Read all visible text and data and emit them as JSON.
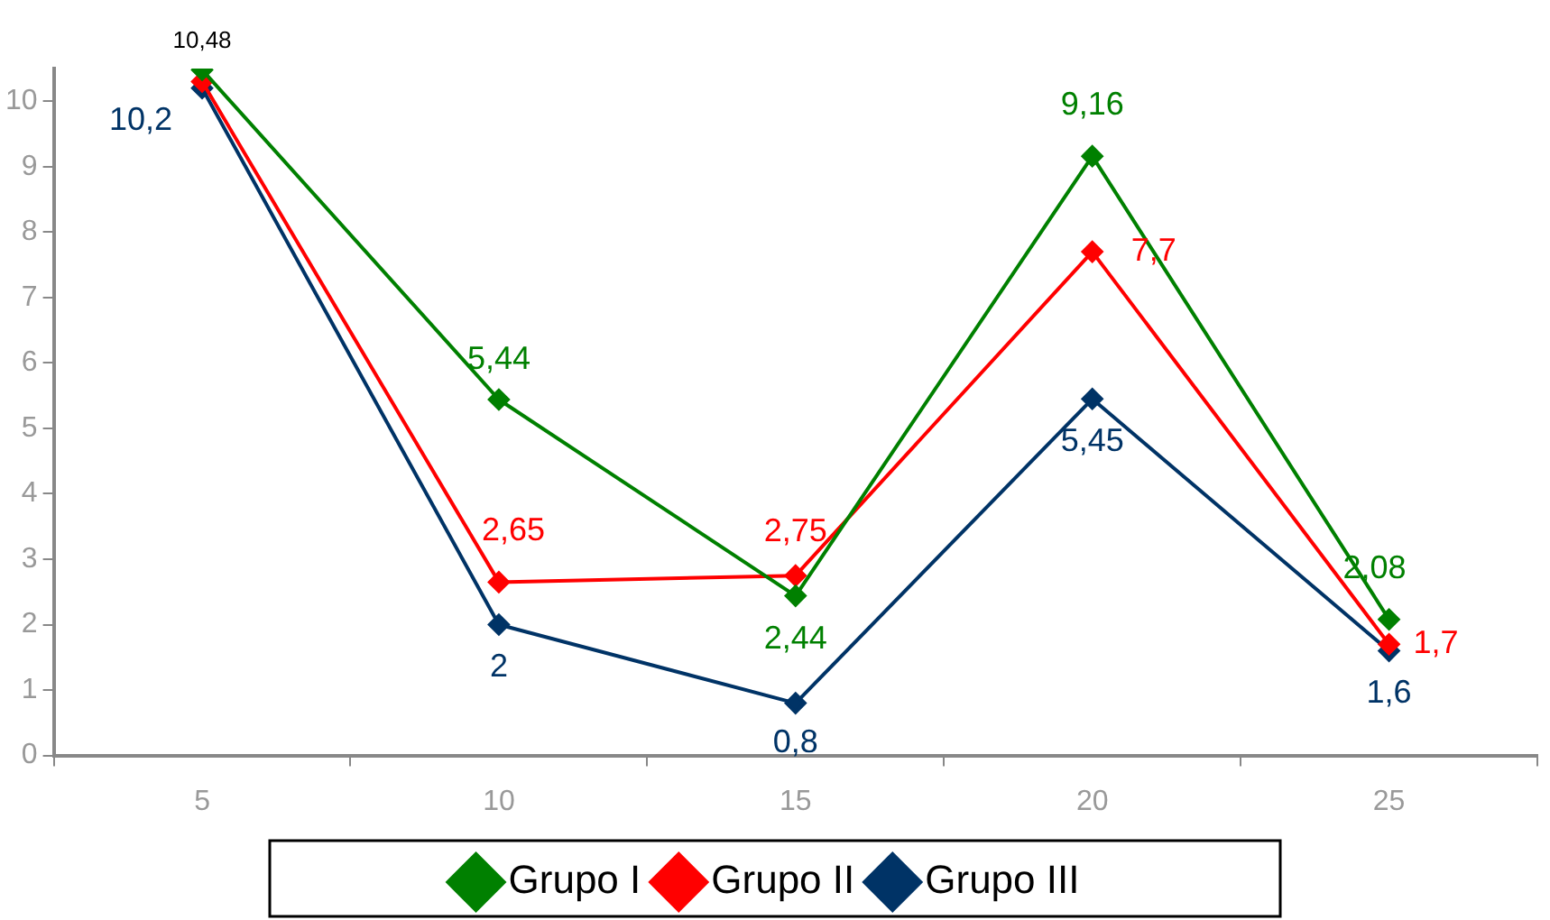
{
  "chart_data": {
    "type": "line",
    "categories": [
      "5",
      "10",
      "15",
      "20",
      "25"
    ],
    "series": [
      {
        "name": "Grupo I",
        "color": "#008000",
        "values": [
          10.48,
          5.44,
          2.44,
          9.16,
          2.08
        ],
        "value_labels": [
          null,
          "5,44",
          "2,44",
          "9,16",
          "2,08"
        ]
      },
      {
        "name": "Grupo II",
        "color": "#ff0000",
        "values": [
          10.3,
          2.65,
          2.75,
          7.7,
          1.7
        ],
        "value_labels": [
          null,
          "2,65",
          "2,75",
          "7,7",
          "1,7"
        ]
      },
      {
        "name": "Grupo III",
        "color": "#003366",
        "values": [
          10.2,
          2,
          0.8,
          5.45,
          1.6
        ],
        "value_labels": [
          "10,2",
          "2",
          "0,8",
          "5,45",
          "1,6"
        ]
      }
    ],
    "annotations": [
      {
        "text": "10,48",
        "x": "5",
        "y": 10.48
      }
    ],
    "ylim": [
      0,
      10.5
    ],
    "yticks": [
      0,
      1,
      2,
      3,
      4,
      5,
      6,
      7,
      8,
      9,
      10
    ],
    "grid": false,
    "legend": "bottom",
    "marker": "diamond",
    "line_style": "solid"
  }
}
